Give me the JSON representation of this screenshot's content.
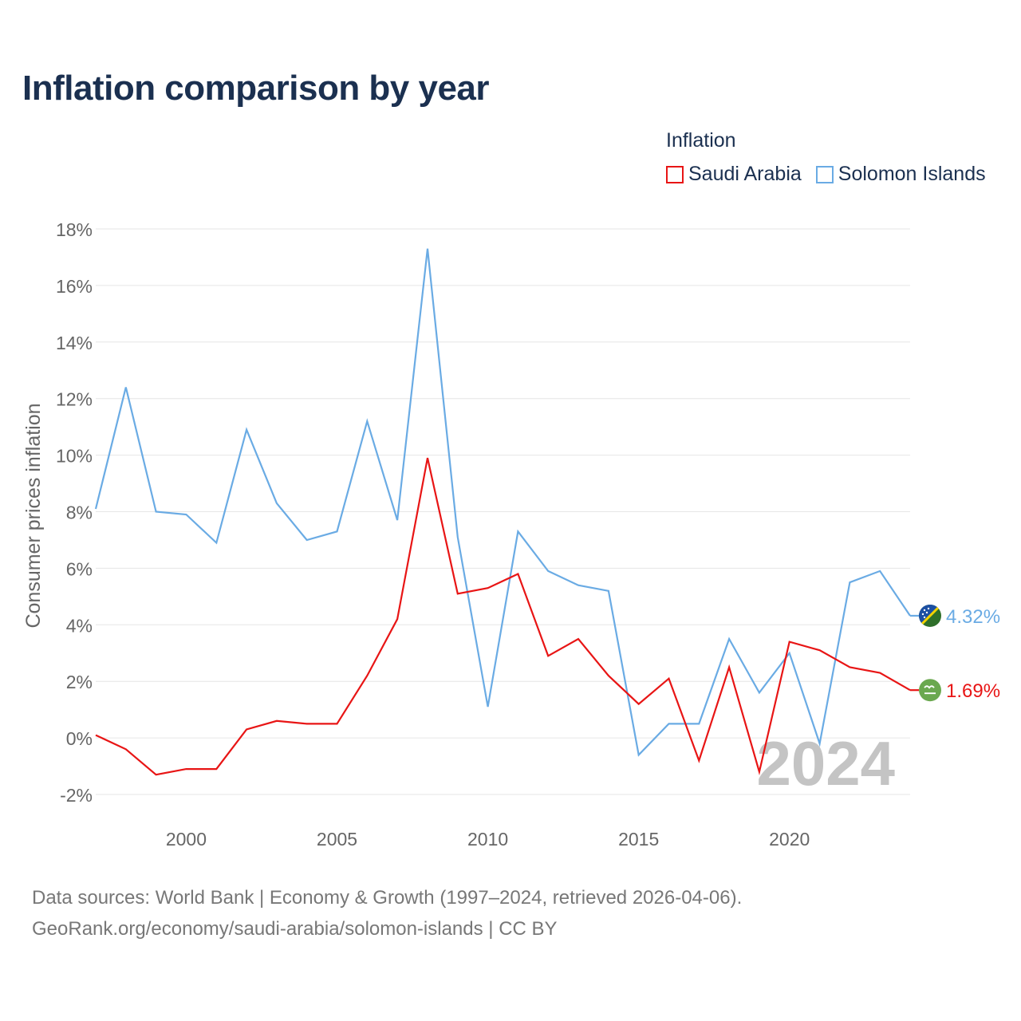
{
  "header": {
    "title": "Inflation comparison by year"
  },
  "legend": {
    "title": "Inflation",
    "items": [
      {
        "label": "Saudi Arabia",
        "color": "#e81515"
      },
      {
        "label": "Solomon Islands",
        "color": "#6aabe4"
      }
    ]
  },
  "footer": {
    "line1": "Data sources: World Bank | Economy & Growth (1997–2024, retrieved 2026-04-06).",
    "line2": "GeoRank.org/economy/saudi-arabia/solomon-islands | CC BY"
  },
  "chart_data": {
    "type": "line",
    "title": "Inflation comparison by year",
    "xlabel": "",
    "ylabel": "Consumer prices inflation",
    "xlim": [
      1997,
      2024
    ],
    "ylim": [
      -2,
      18
    ],
    "x_ticks": [
      2000,
      2005,
      2010,
      2015,
      2020
    ],
    "x_tick_labels": [
      "2000",
      "2005",
      "2010",
      "2015",
      "2020"
    ],
    "y_ticks": [
      -2,
      0,
      2,
      4,
      6,
      8,
      10,
      12,
      14,
      16,
      18
    ],
    "y_tick_labels": [
      "-2%",
      "0%",
      "2%",
      "4%",
      "6%",
      "8%",
      "10%",
      "12%",
      "14%",
      "16%",
      "18%"
    ],
    "grid": true,
    "watermark": "2024",
    "x": [
      1997,
      1998,
      1999,
      2000,
      2001,
      2002,
      2003,
      2004,
      2005,
      2006,
      2007,
      2008,
      2009,
      2010,
      2011,
      2012,
      2013,
      2014,
      2015,
      2016,
      2017,
      2018,
      2019,
      2020,
      2021,
      2022,
      2023,
      2024
    ],
    "series": [
      {
        "name": "Solomon Islands",
        "color": "#6aabe4",
        "end_label": "4.32%",
        "flag_icon": "solomon-islands-flag-icon",
        "values": [
          8.1,
          12.4,
          8.0,
          7.9,
          6.9,
          10.9,
          8.3,
          7.0,
          7.3,
          11.2,
          7.7,
          17.3,
          7.1,
          1.1,
          7.3,
          5.9,
          5.4,
          5.2,
          -0.6,
          0.5,
          0.5,
          3.5,
          1.6,
          3.0,
          -0.2,
          5.5,
          5.9,
          4.32
        ]
      },
      {
        "name": "Saudi Arabia",
        "color": "#e81515",
        "end_label": "1.69%",
        "flag_icon": "saudi-arabia-flag-icon",
        "values": [
          0.1,
          -0.4,
          -1.3,
          -1.1,
          -1.1,
          0.3,
          0.6,
          0.5,
          0.5,
          2.2,
          4.2,
          9.9,
          5.1,
          5.3,
          5.8,
          2.9,
          3.5,
          2.2,
          1.2,
          2.1,
          -0.8,
          2.5,
          -1.2,
          3.4,
          3.1,
          2.5,
          2.3,
          1.69
        ]
      }
    ]
  }
}
